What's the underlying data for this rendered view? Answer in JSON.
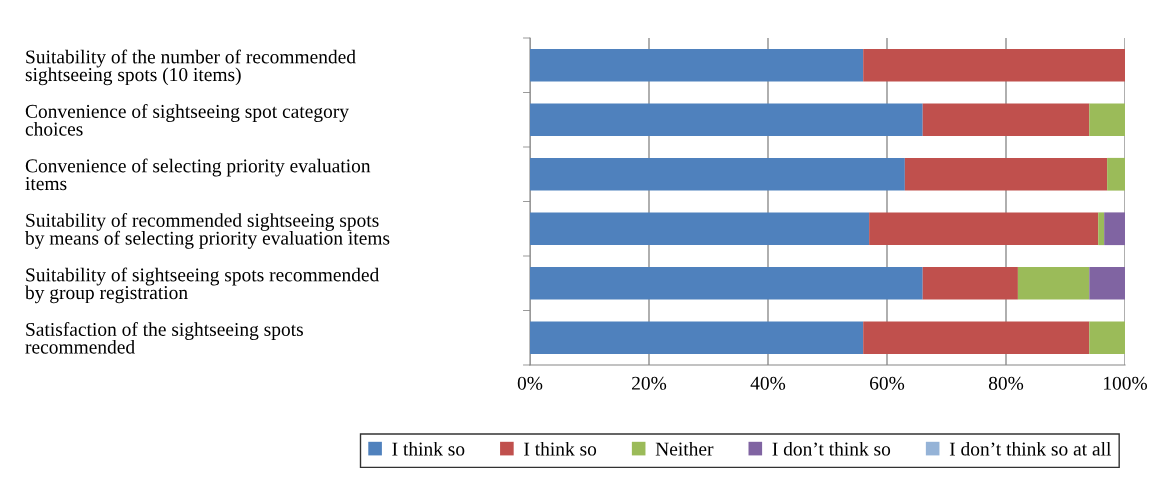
{
  "chart_data": {
    "type": "bar",
    "orientation": "horizontal",
    "stacked": true,
    "categories": [
      "Suitability of the number of recommended\nsightseeing spots (10 items)",
      "Convenience of sightseeing spot category\nchoices",
      "Convenience of selecting priority evaluation\nitems",
      "Suitability of recommended sightseeing spots\nby means of selecting priority evaluation items",
      "Suitability of sightseeing spots recommended\nby group registration",
      "Satisfaction of the sightseeing spots\nrecommended"
    ],
    "series": [
      {
        "name": "I think so",
        "color": "#4f81bd",
        "values": [
          56,
          66,
          63,
          57,
          66,
          56
        ]
      },
      {
        "name": "I think so",
        "color": "#c0504d",
        "values": [
          44,
          28,
          34,
          38.5,
          16,
          38
        ]
      },
      {
        "name": "Neither",
        "color": "#9bbb59",
        "values": [
          0,
          6,
          3,
          1,
          12,
          6
        ]
      },
      {
        "name": "I don’t think so",
        "color": "#8064a2",
        "values": [
          0,
          0,
          0,
          3.5,
          6,
          0
        ]
      },
      {
        "name": "I don’t think so at all",
        "color": "#95b3d7",
        "values": [
          0,
          0,
          0,
          0,
          0,
          0
        ]
      }
    ],
    "xlim": [
      0,
      100
    ],
    "xticks": [
      {
        "value": 0,
        "label": "0%"
      },
      {
        "value": 20,
        "label": "20%"
      },
      {
        "value": 40,
        "label": "40%"
      },
      {
        "value": 60,
        "label": "60%"
      },
      {
        "value": 80,
        "label": "80%"
      },
      {
        "value": 100,
        "label": "100%"
      }
    ],
    "grid": "x",
    "legend": "bottom"
  }
}
